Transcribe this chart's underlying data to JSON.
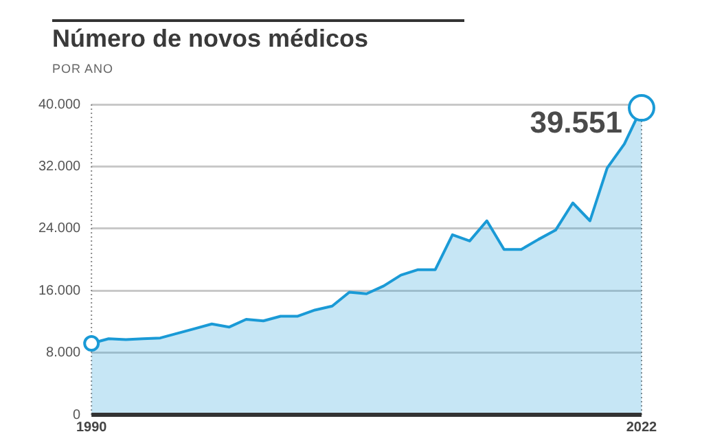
{
  "chart_data": {
    "type": "area",
    "title": "Número de novos médicos",
    "subtitle": "POR ANO",
    "x": [
      1990,
      1991,
      1992,
      1993,
      1994,
      1995,
      1996,
      1997,
      1998,
      1999,
      2000,
      2001,
      2002,
      2003,
      2004,
      2005,
      2006,
      2007,
      2008,
      2009,
      2010,
      2011,
      2012,
      2013,
      2014,
      2015,
      2016,
      2017,
      2018,
      2019,
      2020,
      2021,
      2022
    ],
    "series": [
      {
        "color": "#1a9ad6",
        "values": [
          9200,
          9800,
          9700,
          9800,
          9900,
          10500,
          11100,
          11700,
          11300,
          12300,
          12100,
          12700,
          12700,
          13500,
          14000,
          15800,
          15600,
          16600,
          18000,
          18700,
          18700,
          23200,
          22400,
          25000,
          21300,
          21300,
          22600,
          23800,
          27300,
          25000,
          31800,
          34900,
          39551
        ]
      }
    ],
    "xlim": [
      1990,
      2022
    ],
    "xticks": [
      1990,
      2022
    ],
    "ylim": [
      0,
      40000
    ],
    "yticks": [
      0,
      {
        "value": 8000,
        "label": "8.000"
      },
      {
        "value": 16000,
        "label": "16.000"
      },
      {
        "value": 24000,
        "label": "24.000"
      },
      {
        "value": 32000,
        "label": "32.000"
      },
      {
        "value": 40000,
        "label": "40.000"
      }
    ],
    "grid": "y",
    "legend": false,
    "ref_lines": [
      {
        "axis": "x",
        "value": 1990,
        "color": "#888888",
        "line_style": "dotted"
      },
      {
        "axis": "x",
        "value": 2022,
        "color": "#888888",
        "line_style": "dotted"
      }
    ],
    "annotations": [
      {
        "text": "39.551",
        "x": 2022,
        "y": 39551
      }
    ]
  }
}
